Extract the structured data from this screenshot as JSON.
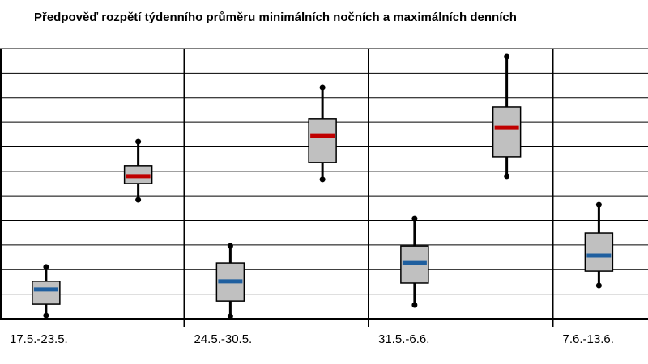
{
  "chart_data": {
    "type": "box",
    "title": "Předpověď rozpětí týdenního průměru minimálních nočních a maximálních denních",
    "categories": [
      "17.5.-23.5.",
      "24.5.-30.5.",
      "31.5.-6.6.",
      "7.6.-13.6."
    ],
    "ylim": [
      0,
      11
    ],
    "yticks": [
      0,
      1,
      2,
      3,
      4,
      5,
      6,
      7,
      8,
      9,
      10,
      11
    ],
    "grid": true,
    "series": [
      {
        "color": "#1f5f9f",
        "low": [
          0.13,
          0.1,
          0.56,
          1.35
        ],
        "q1": [
          0.59,
          0.72,
          1.45,
          1.94
        ],
        "median": [
          1.19,
          1.52,
          2.27,
          2.57
        ],
        "q3": [
          1.52,
          2.27,
          2.96,
          3.49
        ],
        "high": [
          2.11,
          2.96,
          4.08,
          4.64
        ]
      },
      {
        "color": "#c00000",
        "low": [
          4.84,
          5.67,
          5.8,
          null
        ],
        "q1": [
          5.5,
          6.36,
          6.59,
          null
        ],
        "median": [
          5.8,
          7.44,
          7.77,
          null
        ],
        "q3": [
          6.23,
          8.14,
          8.63,
          null
        ],
        "high": [
          7.21,
          9.42,
          10.67,
          null
        ]
      }
    ]
  }
}
